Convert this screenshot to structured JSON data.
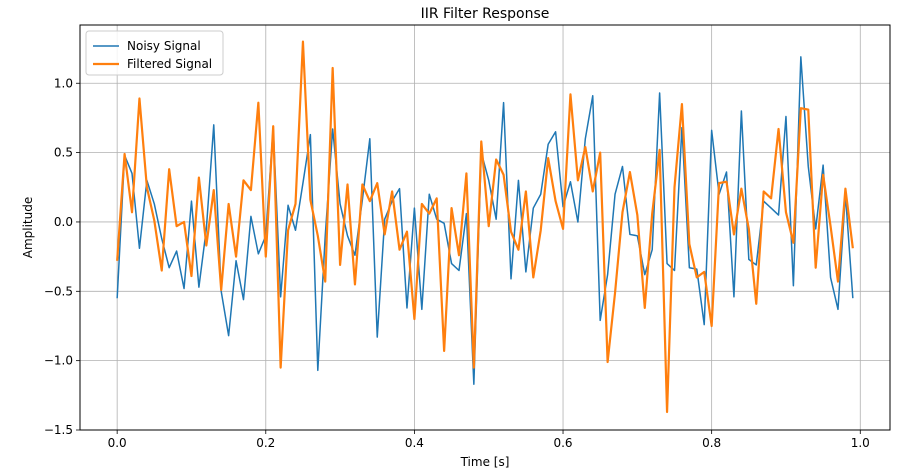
{
  "chart_data": {
    "type": "line",
    "title": "IIR Filter Response",
    "xlabel": "Time [s]",
    "ylabel": "Amplitude",
    "xlim": [
      -0.05,
      1.04
    ],
    "ylim": [
      -1.5,
      1.42
    ],
    "xticks": [
      0.0,
      0.2,
      0.4,
      0.6,
      0.8,
      1.0
    ],
    "xtick_labels": [
      "0.0",
      "0.2",
      "0.4",
      "0.6",
      "0.8",
      "1.0"
    ],
    "yticks": [
      -1.5,
      -1.0,
      -0.5,
      0.0,
      0.5,
      1.0
    ],
    "ytick_labels": [
      "−1.5",
      "−1.0",
      "−0.5",
      "0.0",
      "0.5",
      "1.0"
    ],
    "grid": true,
    "legend_position": "top-left",
    "series": [
      {
        "name": "Noisy Signal",
        "color": "#1f77b4",
        "x": [
          0.0,
          0.01,
          0.02,
          0.03,
          0.04,
          0.05,
          0.06,
          0.07,
          0.08,
          0.09,
          0.1,
          0.11,
          0.12,
          0.13,
          0.14,
          0.15,
          0.16,
          0.17,
          0.18,
          0.19,
          0.2,
          0.21,
          0.22,
          0.23,
          0.24,
          0.25,
          0.26,
          0.27,
          0.28,
          0.29,
          0.3,
          0.31,
          0.32,
          0.33,
          0.34,
          0.35,
          0.36,
          0.37,
          0.38,
          0.39,
          0.4,
          0.41,
          0.42,
          0.43,
          0.44,
          0.45,
          0.46,
          0.47,
          0.48,
          0.49,
          0.5,
          0.51,
          0.52,
          0.53,
          0.54,
          0.55,
          0.56,
          0.57,
          0.58,
          0.59,
          0.6,
          0.61,
          0.62,
          0.63,
          0.64,
          0.65,
          0.66,
          0.67,
          0.68,
          0.69,
          0.7,
          0.71,
          0.72,
          0.73,
          0.74,
          0.75,
          0.76,
          0.77,
          0.78,
          0.79,
          0.8,
          0.81,
          0.82,
          0.83,
          0.84,
          0.85,
          0.86,
          0.87,
          0.88,
          0.89,
          0.9,
          0.91,
          0.92,
          0.93,
          0.94,
          0.95,
          0.96,
          0.97,
          0.98,
          0.99
        ],
        "y": [
          -0.55,
          0.48,
          0.35,
          -0.19,
          0.3,
          0.13,
          -0.12,
          -0.33,
          -0.21,
          -0.48,
          0.15,
          -0.47,
          -0.05,
          0.7,
          -0.5,
          -0.82,
          -0.28,
          -0.56,
          0.04,
          -0.23,
          -0.1,
          0.68,
          -0.54,
          0.12,
          -0.06,
          0.28,
          0.63,
          -1.07,
          -0.1,
          0.67,
          0.13,
          -0.1,
          -0.24,
          0.16,
          0.6,
          -0.83,
          0.02,
          0.15,
          0.24,
          -0.62,
          0.1,
          -0.63,
          0.2,
          0.02,
          -0.01,
          -0.3,
          -0.35,
          0.06,
          -1.17,
          0.5,
          0.3,
          0.02,
          0.86,
          -0.41,
          0.3,
          -0.36,
          0.1,
          0.2,
          0.56,
          0.65,
          0.11,
          0.29,
          0.0,
          0.6,
          0.91,
          -0.71,
          -0.38,
          0.2,
          0.4,
          -0.09,
          -0.1,
          -0.38,
          -0.2,
          0.93,
          -0.3,
          -0.35,
          0.68,
          -0.33,
          -0.34,
          -0.74,
          0.66,
          0.2,
          0.36,
          -0.54,
          0.8,
          -0.27,
          -0.31,
          0.15,
          0.1,
          0.05,
          0.76,
          -0.46,
          1.19,
          0.4,
          -0.05,
          0.41,
          -0.4,
          -0.63,
          0.2,
          -0.55
        ]
      },
      {
        "name": "Filtered Signal",
        "color": "#ff7f0e",
        "x": [
          0.0,
          0.01,
          0.02,
          0.03,
          0.04,
          0.05,
          0.06,
          0.07,
          0.08,
          0.09,
          0.1,
          0.11,
          0.12,
          0.13,
          0.14,
          0.15,
          0.16,
          0.17,
          0.18,
          0.19,
          0.2,
          0.21,
          0.22,
          0.23,
          0.24,
          0.25,
          0.26,
          0.27,
          0.28,
          0.29,
          0.3,
          0.31,
          0.32,
          0.33,
          0.34,
          0.35,
          0.36,
          0.37,
          0.38,
          0.39,
          0.4,
          0.41,
          0.42,
          0.43,
          0.44,
          0.45,
          0.46,
          0.47,
          0.48,
          0.49,
          0.5,
          0.51,
          0.52,
          0.53,
          0.54,
          0.55,
          0.56,
          0.57,
          0.58,
          0.59,
          0.6,
          0.61,
          0.62,
          0.63,
          0.64,
          0.65,
          0.66,
          0.67,
          0.68,
          0.69,
          0.7,
          0.71,
          0.72,
          0.73,
          0.74,
          0.75,
          0.76,
          0.77,
          0.78,
          0.79,
          0.8,
          0.81,
          0.82,
          0.83,
          0.84,
          0.85,
          0.86,
          0.87,
          0.88,
          0.89,
          0.9,
          0.91,
          0.92,
          0.93,
          0.94,
          0.95,
          0.96,
          0.97,
          0.98,
          0.99
        ],
        "y": [
          -0.28,
          0.49,
          0.07,
          0.89,
          0.25,
          0.01,
          -0.35,
          0.38,
          -0.03,
          0.0,
          -0.39,
          0.32,
          -0.17,
          0.23,
          -0.49,
          0.13,
          -0.25,
          0.3,
          0.23,
          0.86,
          -0.25,
          0.69,
          -1.05,
          -0.06,
          0.13,
          1.3,
          0.16,
          -0.1,
          -0.43,
          1.11,
          -0.31,
          0.27,
          -0.45,
          0.27,
          0.15,
          0.28,
          -0.09,
          0.22,
          -0.2,
          -0.07,
          -0.7,
          0.13,
          0.06,
          0.17,
          -0.93,
          0.1,
          -0.24,
          0.35,
          -1.05,
          0.58,
          -0.03,
          0.45,
          0.34,
          -0.07,
          -0.2,
          0.22,
          -0.4,
          -0.06,
          0.46,
          0.15,
          -0.05,
          0.92,
          0.3,
          0.54,
          0.22,
          0.5,
          -1.01,
          -0.51,
          0.07,
          0.36,
          0.05,
          -0.62,
          0.06,
          0.52,
          -1.37,
          0.25,
          0.85,
          -0.16,
          -0.4,
          -0.36,
          -0.75,
          0.28,
          0.29,
          -0.09,
          0.24,
          -0.05,
          -0.59,
          0.22,
          0.17,
          0.67,
          0.07,
          -0.15,
          0.82,
          0.81,
          -0.33,
          0.34,
          -0.03,
          -0.43,
          0.24,
          -0.19
        ]
      }
    ]
  }
}
